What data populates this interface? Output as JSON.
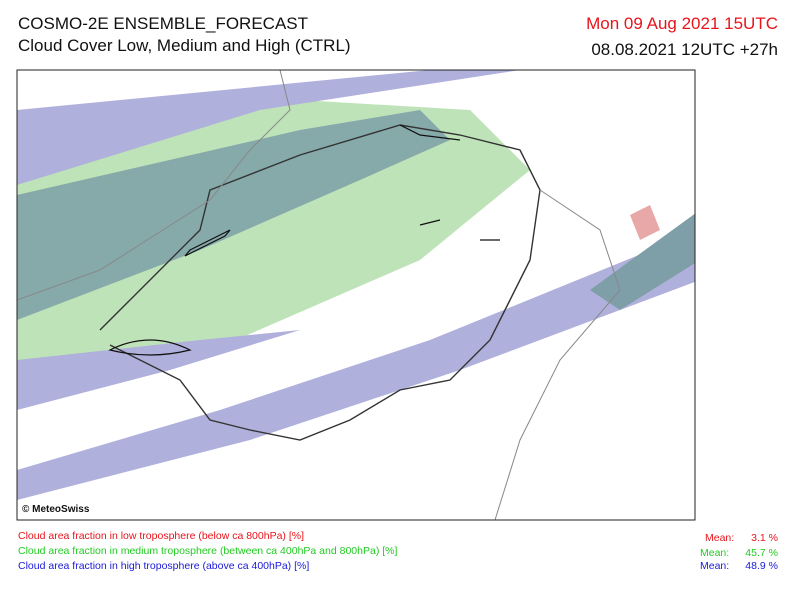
{
  "header": {
    "title": "COSMO-2E ENSEMBLE_FORECAST",
    "subtitle": "Cloud Cover Low, Medium and High (CTRL)",
    "valid_time": "Mon 09 Aug 2021 15UTC",
    "run_time": "08.08.2021 12UTC +27h"
  },
  "map": {
    "copyright": "© MeteoSwiss"
  },
  "legend": [
    {
      "label": "Cloud area fraction in low troposphere (below ca 800hPa) [%]",
      "mean_label": "Mean:",
      "mean_value": "3.1 %"
    },
    {
      "label": "Cloud area fraction in medium troposphere (between ca 400hPa and 800hPa) [%]",
      "mean_label": "Mean:",
      "mean_value": "45.7 %"
    },
    {
      "label": "Cloud area fraction in high troposphere (above ca 400hPa) [%]",
      "mean_label": "Mean:",
      "mean_value": "48.9 %"
    }
  ]
}
